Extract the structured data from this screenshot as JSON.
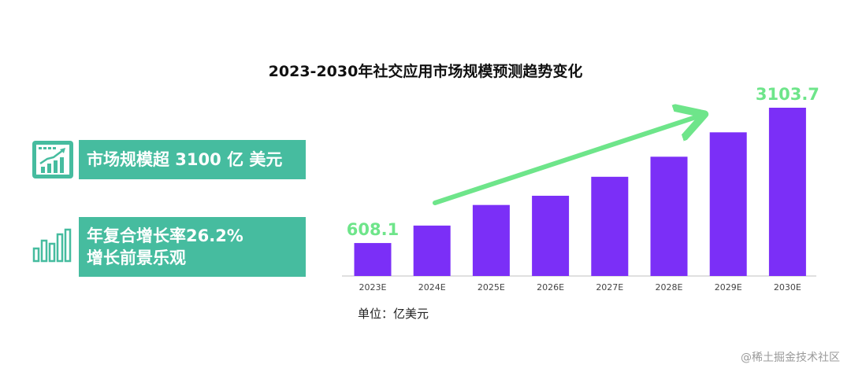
{
  "chart_data": {
    "type": "bar",
    "title": "2023-2030年社交应用市场规模预测趋势变化",
    "categories": [
      "2023E",
      "2024E",
      "2025E",
      "2026E",
      "2027E",
      "2028E",
      "2029E",
      "2030E"
    ],
    "values": [
      608.1,
      930,
      1310,
      1480,
      1830,
      2200,
      2650,
      3103.7
    ],
    "data_labels": [
      "608.1",
      "",
      "",
      "",
      "",
      "",
      "",
      "3103.7"
    ],
    "ylim": [
      0,
      3103.7
    ],
    "unit_label": "单位：亿美元",
    "bar_color": "#7b2ff7",
    "trend_arrow_color": "#6ee58a",
    "label_color": "#6ee58a",
    "grid": false
  },
  "highlights": {
    "market_size": "市场规模超 3100 亿 美元",
    "cagr_line1": "年复合增长率26.2%",
    "cagr_line2": "增长前景乐观"
  },
  "colors": {
    "panel": "#46bc9f",
    "icon": "#46bc9f"
  },
  "icons": {
    "market": "growth-chart-icon",
    "cagr": "bar-chart-icon"
  },
  "watermark": "@稀土掘金技术社区"
}
